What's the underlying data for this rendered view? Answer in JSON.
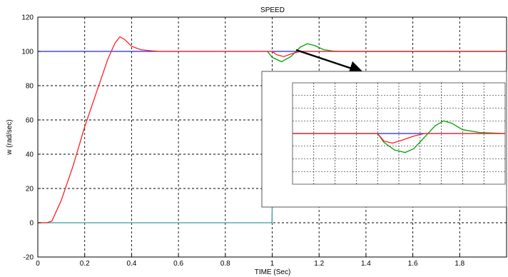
{
  "chart_data": [
    {
      "type": "line",
      "title": "SPEED",
      "xlabel": "TIME (Sec)",
      "ylabel": "w (rad/sec)",
      "xlim": [
        0,
        2
      ],
      "ylim": [
        -20,
        120
      ],
      "xticks": [
        0,
        0.2,
        0.4,
        0.6,
        0.8,
        1,
        1.2,
        1.4,
        1.6,
        1.8
      ],
      "xtick_labels": [
        "0",
        "0.2",
        "0.4",
        "0.6",
        "0.8",
        "1",
        "1.2",
        "1.4",
        "1.6",
        "1.8"
      ],
      "yticks": [
        -20,
        0,
        20,
        40,
        60,
        80,
        100,
        120
      ],
      "ytick_labels": [
        "-20",
        "0",
        "20",
        "40",
        "60",
        "80",
        "100",
        "120"
      ],
      "grid": true,
      "series": [
        {
          "color": "#2020ff",
          "x": [
            0,
            2
          ],
          "y": [
            100,
            100
          ]
        },
        {
          "color": "#3a9a9a",
          "x": [
            0,
            0.999,
            1.001,
            2
          ],
          "y": [
            0,
            0,
            20,
            20
          ]
        },
        {
          "color": "#00a000",
          "x": [
            0.98,
            1.0,
            1.04,
            1.08,
            1.12,
            1.15,
            1.18,
            1.22,
            1.26,
            1.3,
            2
          ],
          "y": [
            100,
            96.5,
            94,
            97,
            102.5,
            104.5,
            103.5,
            101,
            100.2,
            100,
            100
          ]
        },
        {
          "color": "#ff2020",
          "x": [
            0,
            0.04,
            0.06,
            0.1,
            0.15,
            0.2,
            0.25,
            0.3,
            0.33,
            0.35,
            0.37,
            0.4,
            0.44,
            0.48,
            0.52,
            1.0,
            1.02,
            1.05,
            1.08,
            1.12,
            2
          ],
          "y": [
            0,
            0,
            1,
            13,
            33,
            56,
            76,
            96,
            105,
            108.5,
            107,
            103,
            101,
            100.4,
            100,
            100,
            98,
            97,
            98.5,
            100,
            100
          ]
        }
      ]
    },
    {
      "type": "line",
      "title": "",
      "xlim": [
        0.9,
        1.9
      ],
      "ylim": [
        80,
        120
      ],
      "grid": true,
      "series": [
        {
          "color": "#2020ff",
          "x": [
            0.9,
            1.9
          ],
          "y": [
            100,
            100
          ]
        },
        {
          "color": "#00a000",
          "x": [
            0.9,
            1.3,
            1.33,
            1.38,
            1.43,
            1.47,
            1.52,
            1.57,
            1.61,
            1.65,
            1.7,
            1.78,
            1.9
          ],
          "y": [
            100,
            100,
            96.5,
            93.5,
            92.5,
            94,
            98.5,
            103,
            105,
            104,
            101.5,
            100.4,
            100
          ]
        },
        {
          "color": "#ff2020",
          "x": [
            0.9,
            1.3,
            1.33,
            1.37,
            1.42,
            1.47,
            1.52,
            1.9
          ],
          "y": [
            100,
            100,
            97,
            96.2,
            97.5,
            99,
            100,
            100
          ]
        }
      ]
    }
  ]
}
